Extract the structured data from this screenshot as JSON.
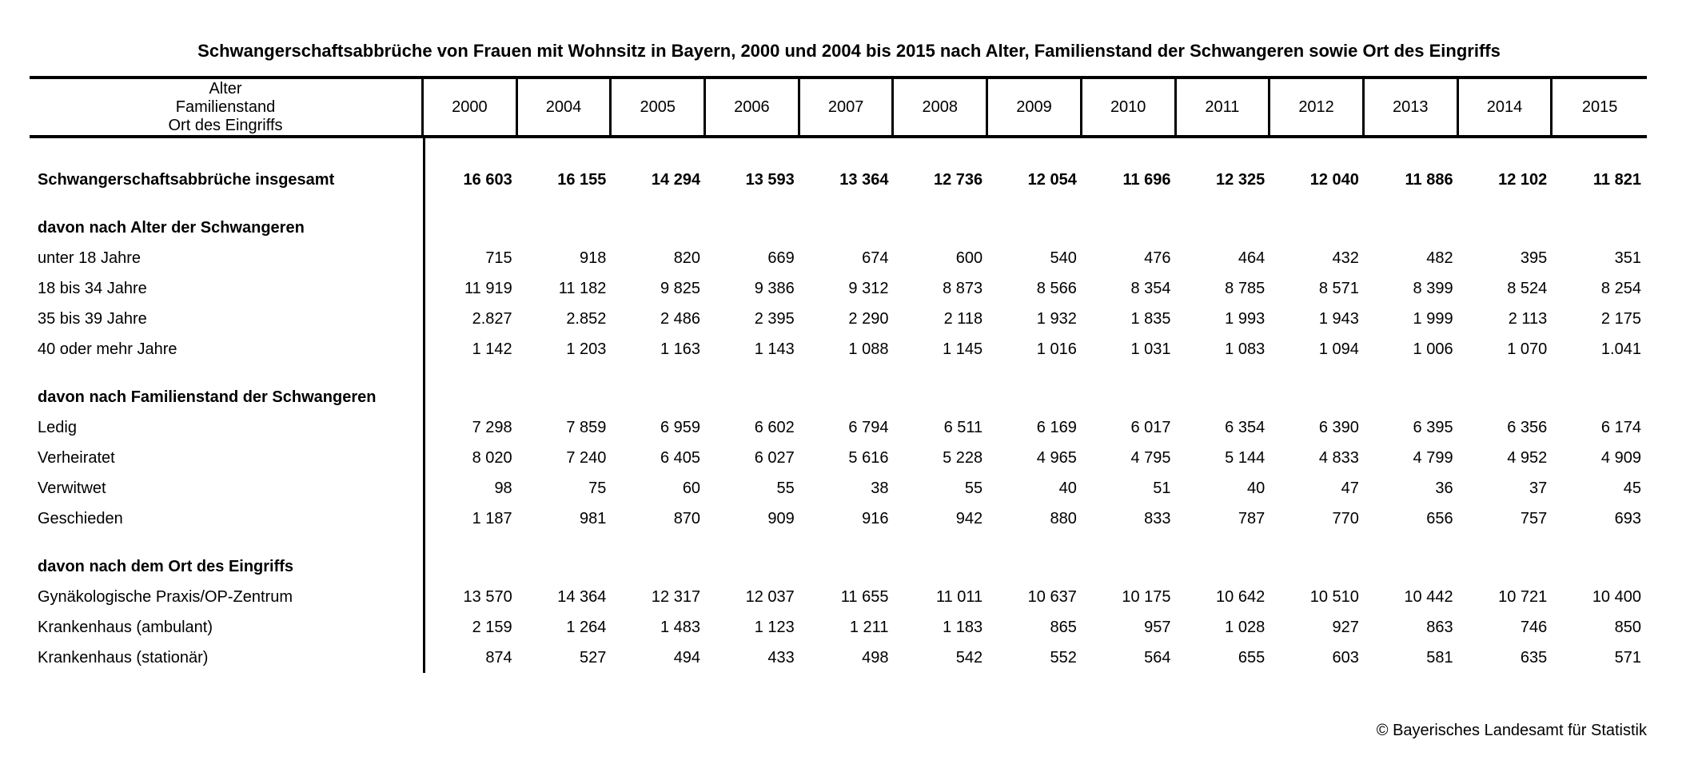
{
  "title": "Schwangerschaftsabbrüche von Frauen mit Wohnsitz in Bayern, 2000 und 2004 bis 2015 nach Alter, Familienstand der Schwangeren sowie Ort des Eingriffs",
  "footer": {
    "copyright": "© Bayerisches Landesamt für Statistik"
  },
  "colors": {
    "text": "#000000",
    "background": "#ffffff",
    "border": "#000000"
  },
  "table": {
    "header_label_lines": [
      "Alter",
      "Familienstand",
      "Ort des Eingriffs"
    ],
    "years": [
      "2000",
      "2004",
      "2005",
      "2006",
      "2007",
      "2008",
      "2009",
      "2010",
      "2011",
      "2012",
      "2013",
      "2014",
      "2015"
    ],
    "rows": [
      {
        "label": "Schwangerschaftsabbrüche insgesamt",
        "style": "total",
        "values": [
          "16 603",
          "16 155",
          "14 294",
          "13 593",
          "13 364",
          "12 736",
          "12 054",
          "11 696",
          "12 325",
          "12 040",
          "11 886",
          "12 102",
          "11 821"
        ]
      },
      {
        "label": "davon nach Alter der Schwangeren",
        "style": "section",
        "values": []
      },
      {
        "label": "unter 18 Jahre",
        "style": "data",
        "values": [
          "715",
          "918",
          "820",
          "669",
          "674",
          "600",
          "540",
          "476",
          "464",
          "432",
          "482",
          "395",
          "351"
        ]
      },
      {
        "label": "18 bis 34 Jahre",
        "style": "data",
        "values": [
          "11 919",
          "11 182",
          "9 825",
          "9 386",
          "9 312",
          "8 873",
          "8 566",
          "8 354",
          "8 785",
          "8 571",
          "8 399",
          "8 524",
          "8 254"
        ]
      },
      {
        "label": "35 bis 39 Jahre",
        "style": "data",
        "values": [
          "2.827",
          "2.852",
          "2 486",
          "2 395",
          "2 290",
          "2 118",
          "1 932",
          "1 835",
          "1 993",
          "1 943",
          "1 999",
          "2 113",
          "2 175"
        ]
      },
      {
        "label": "40 oder mehr Jahre",
        "style": "data",
        "values": [
          "1 142",
          "1 203",
          "1 163",
          "1 143",
          "1 088",
          "1 145",
          "1 016",
          "1 031",
          "1 083",
          "1 094",
          "1 006",
          "1 070",
          "1.041"
        ]
      },
      {
        "label": "davon nach Familienstand der Schwangeren",
        "style": "section",
        "values": []
      },
      {
        "label": "Ledig",
        "style": "data",
        "values": [
          "7 298",
          "7 859",
          "6 959",
          "6 602",
          "6 794",
          "6 511",
          "6 169",
          "6 017",
          "6 354",
          "6 390",
          "6 395",
          "6 356",
          "6 174"
        ]
      },
      {
        "label": "Verheiratet",
        "style": "data",
        "values": [
          "8 020",
          "7 240",
          "6 405",
          "6 027",
          "5 616",
          "5 228",
          "4 965",
          "4 795",
          "5 144",
          "4 833",
          "4 799",
          "4 952",
          "4 909"
        ]
      },
      {
        "label": "Verwitwet",
        "style": "data",
        "values": [
          "98",
          "75",
          "60",
          "55",
          "38",
          "55",
          "40",
          "51",
          "40",
          "47",
          "36",
          "37",
          "45"
        ]
      },
      {
        "label": "Geschieden",
        "style": "data",
        "values": [
          "1 187",
          "981",
          "870",
          "909",
          "916",
          "942",
          "880",
          "833",
          "787",
          "770",
          "656",
          "757",
          "693"
        ]
      },
      {
        "label": "davon nach dem Ort des Eingriffs",
        "style": "section",
        "values": []
      },
      {
        "label": "Gynäkologische Praxis/OP-Zentrum",
        "style": "data",
        "values": [
          "13 570",
          "14 364",
          "12 317",
          "12 037",
          "11 655",
          "11 011",
          "10 637",
          "10 175",
          "10 642",
          "10 510",
          "10 442",
          "10 721",
          "10 400"
        ]
      },
      {
        "label": "Krankenhaus (ambulant)",
        "style": "data",
        "values": [
          "2 159",
          "1 264",
          "1 483",
          "1 123",
          "1 211",
          "1 183",
          "865",
          "957",
          "1 028",
          "927",
          "863",
          "746",
          "850"
        ]
      },
      {
        "label": "Krankenhaus (stationär)",
        "style": "data",
        "values": [
          "874",
          "527",
          "494",
          "433",
          "498",
          "542",
          "552",
          "564",
          "655",
          "603",
          "581",
          "635",
          "571"
        ]
      }
    ]
  }
}
